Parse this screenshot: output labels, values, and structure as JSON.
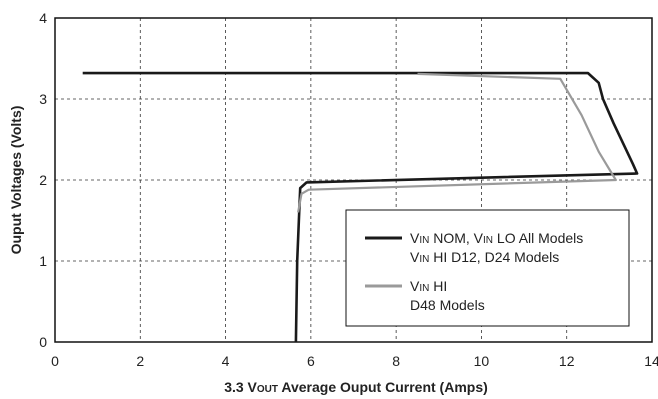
{
  "chart_data": {
    "type": "line",
    "xlabel": "3.3 VOUT Average Ouput Current (Amps)",
    "xlabel_parts": [
      "3.3 V",
      "OUT",
      " Average Ouput Current (Amps)"
    ],
    "ylabel": "Ouput Voltages (Volts)",
    "xlim": [
      0,
      14
    ],
    "ylim": [
      0,
      4
    ],
    "xticks": [
      "0",
      "2",
      "4",
      "6",
      "8",
      "10",
      "12",
      "14"
    ],
    "yticks": [
      "0",
      "1",
      "2",
      "3",
      "4"
    ],
    "grid": true,
    "legend_position": "bottom-right",
    "series": [
      {
        "legend_lines": [
          {
            "parts": [
              "V",
              "IN",
              " NOM, V",
              "IN",
              " LO  All Models"
            ]
          },
          {
            "parts": [
              "V",
              "IN",
              " HI  D12, D24 Models"
            ]
          }
        ],
        "color": "#1a1a1a",
        "x": [
          0.65,
          12.5,
          12.75,
          12.85,
          13.1,
          13.55,
          13.65,
          5.9,
          5.75,
          5.68,
          5.65
        ],
        "y": [
          3.32,
          3.32,
          3.2,
          3.0,
          2.7,
          2.2,
          2.08,
          1.97,
          1.9,
          1.0,
          0.0
        ]
      },
      {
        "legend_lines": [
          {
            "parts": [
              "V",
              "IN",
              " HI"
            ]
          },
          {
            "parts": [
              "D48 Models"
            ]
          }
        ],
        "color": "#9a9a9a",
        "x": [
          8.5,
          11.85,
          12.35,
          12.75,
          13.15,
          5.95,
          5.78,
          5.7
        ],
        "y": [
          3.31,
          3.25,
          2.8,
          2.35,
          2.0,
          1.88,
          1.83,
          1.6
        ]
      }
    ]
  }
}
